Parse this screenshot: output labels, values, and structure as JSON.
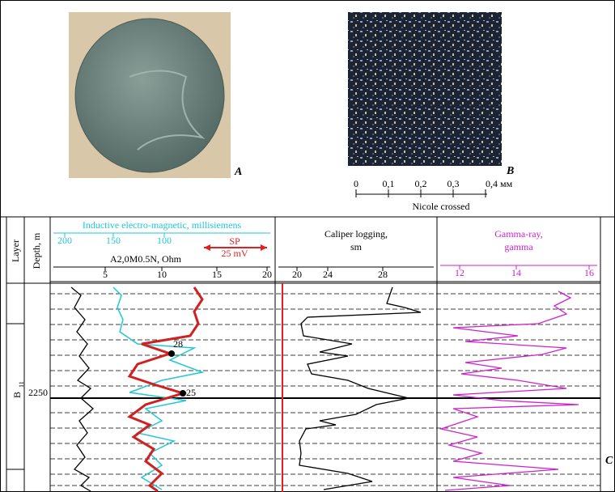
{
  "figure": {
    "panel_a": {
      "label": "A"
    },
    "panel_b": {
      "label": "B",
      "scale_ticks": [
        "0",
        "0,1",
        "0,2",
        "0,3",
        "0,4 мм"
      ],
      "caption": "Nicole crossed"
    },
    "panel_c": {
      "label": "C"
    },
    "log": {
      "layer_header": "Layer",
      "depth_header": "Depth, m",
      "layer_name": "B",
      "layer_sub": "11",
      "depth_mark": "2250",
      "track1": {
        "title": "Inductive electro-magnetic, millisiemens",
        "scale": [
          "200",
          "150",
          "100"
        ],
        "sp_label": "SP",
        "sp_scale": "25 mV",
        "resistivity_title": "A2,0M0.5N, Ohm",
        "ticks": [
          "5",
          "10",
          "15",
          "20"
        ],
        "points": [
          "28",
          "25"
        ]
      },
      "track2": {
        "title_line1": "Caliper logging,",
        "title_line2": "sm",
        "ticks": [
          "20",
          "24",
          "28"
        ]
      },
      "track3": {
        "title_line1": "Gamma-ray,",
        "title_line2": "gamma",
        "ticks": [
          "12",
          "14",
          "16"
        ]
      }
    }
  }
}
